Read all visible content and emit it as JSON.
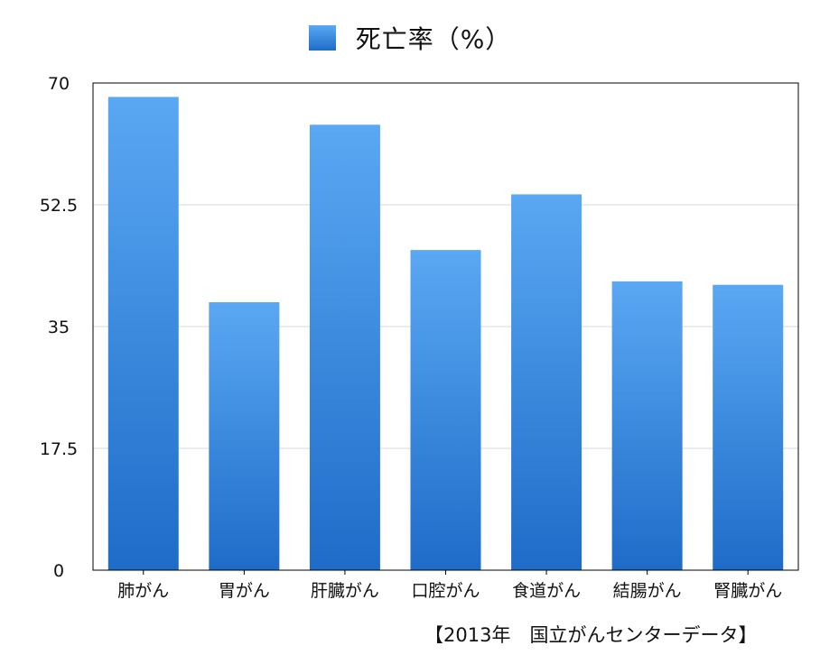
{
  "chart_data": {
    "type": "bar",
    "categories": [
      "肺がん",
      "胃がん",
      "肝臓がん",
      "口腔がん",
      "食道がん",
      "結腸がん",
      "腎臓がん"
    ],
    "series": [
      {
        "name": "死亡率（%）",
        "values": [
          68,
          38.5,
          64,
          46,
          54,
          41.5,
          41
        ]
      }
    ],
    "ylim": [
      0,
      70
    ],
    "yticks": [
      "0",
      "17.5",
      "35",
      "52.5",
      "70"
    ],
    "grid": true,
    "legend_position": "top-center",
    "colors": {
      "bar_top": "#5aa8f3",
      "bar_bottom": "#1e6cc8",
      "grid": "#d9d9d9",
      "axis": "#000000"
    }
  },
  "source_note": "【2013年　国立がんセンターデータ】"
}
